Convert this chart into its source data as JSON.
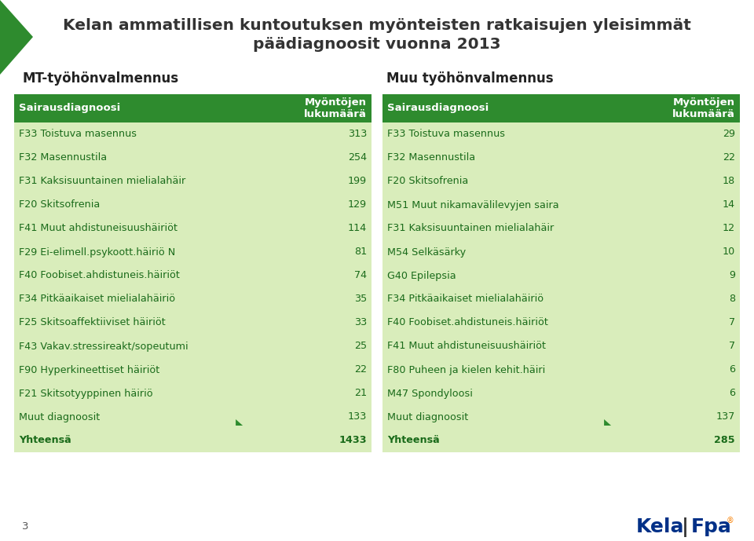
{
  "title_line1": "Kelan ammatillisen kuntoutuksen myönteisten ratkaisujen yleisimmät",
  "title_line2": "päädiagnoosit vuonna 2013",
  "left_section_title": "MT-työhönvalmennus",
  "right_section_title": "Muu työhönvalmennus",
  "header_bg": "#2e8b2e",
  "header_text_color": "#ffffff",
  "row_bg": "#d9edbb",
  "table_text_color": "#1a6b1a",
  "title_color": "#333333",
  "section_title_color": "#222222",
  "col_header1": "Sairausdiagnoosi",
  "col_header2_line1": "Myöntöjen",
  "col_header2_line2": "lukumäärä",
  "left_rows": [
    [
      "F33 Toistuva masennus",
      "313"
    ],
    [
      "F32 Masennustila",
      "254"
    ],
    [
      "F31 Kaksisuuntainen mielialahäir",
      "199"
    ],
    [
      "F20 Skitsofrenia",
      "129"
    ],
    [
      "F41 Muut ahdistuneisuushäiriöt",
      "114"
    ],
    [
      "F29 Ei-elimell.psykoott.häiriö N",
      "81"
    ],
    [
      "F40 Foobiset.ahdistuneis.häiriöt",
      "74"
    ],
    [
      "F34 Pitkäaikaiset mielialahäiriö",
      "35"
    ],
    [
      "F25 Skitsoaffektiiviset häiriöt",
      "33"
    ],
    [
      "F43 Vakav.stressireakt/sopeutumi",
      "25"
    ],
    [
      "F90 Hyperkineettiset häiriöt",
      "22"
    ],
    [
      "F21 Skitsotyyppinen häiriö",
      "21"
    ],
    [
      "Muut diagnoosit",
      "133"
    ],
    [
      "Yhteensä",
      "1433"
    ]
  ],
  "right_rows": [
    [
      "F33 Toistuva masennus",
      "29"
    ],
    [
      "F32 Masennustila",
      "22"
    ],
    [
      "F20 Skitsofrenia",
      "18"
    ],
    [
      "M51 Muut nikamavälilevyjen saira",
      "14"
    ],
    [
      "F31 Kaksisuuntainen mielialahäir",
      "12"
    ],
    [
      "M54 Selkäsärky",
      "10"
    ],
    [
      "G40 Epilepsia",
      "9"
    ],
    [
      "F34 Pitkäaikaiset mielialahäiriö",
      "8"
    ],
    [
      "F40 Foobiset.ahdistuneis.häiriöt",
      "7"
    ],
    [
      "F41 Muut ahdistuneisuushäiriöt",
      "7"
    ],
    [
      "F80 Puheen ja kielen kehit.häiri",
      "6"
    ],
    [
      "M47 Spondyloosi",
      "6"
    ],
    [
      "Muut diagnoosit",
      "137"
    ],
    [
      "Yhteensä",
      "285"
    ]
  ],
  "page_number": "3",
  "bg_color": "#ffffff",
  "green_dark": "#2e8b2e",
  "kela_blue": "#003087",
  "kela_orange": "#f77f00",
  "fig_w": 9.6,
  "fig_h": 6.89,
  "dpi": 100
}
